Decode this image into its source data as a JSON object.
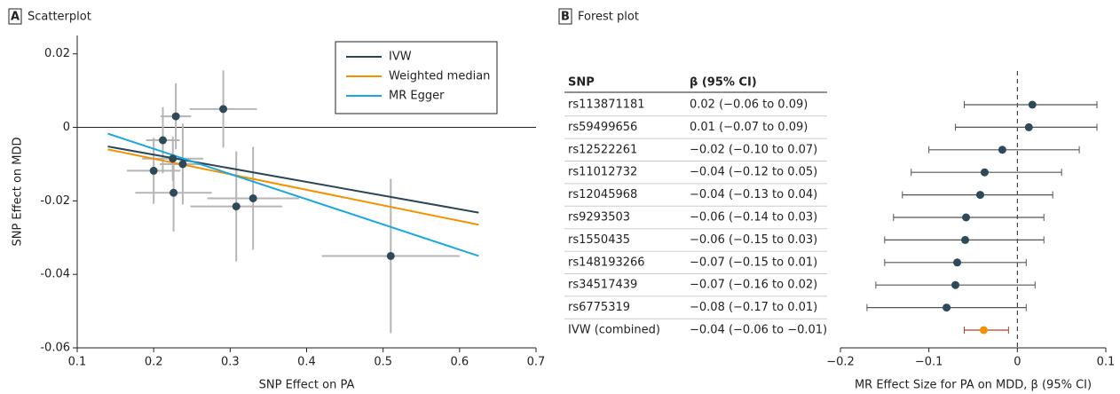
{
  "chart_data": [
    {
      "type": "scatter",
      "panel": "A",
      "title": "Scatterplot",
      "xlabel": "SNP Effect on PA",
      "ylabel": "SNP Effect on MDD",
      "x": [
        0.229,
        0.291,
        0.212,
        0.225,
        0.238,
        0.2,
        0.226,
        0.33,
        0.308,
        0.51
      ],
      "y": [
        0.003,
        0.005,
        -0.0035,
        -0.0085,
        -0.01,
        -0.0118,
        -0.0178,
        -0.0193,
        -0.0215,
        -0.035
      ],
      "xerr": [
        0.02,
        0.044,
        0.022,
        0.04,
        0.03,
        0.035,
        0.05,
        0.06,
        0.06,
        0.09
      ],
      "yerr": [
        0.009,
        0.0105,
        0.009,
        0.006,
        0.011,
        0.009,
        0.0105,
        0.014,
        0.015,
        0.021
      ],
      "color": "#2e4a5a",
      "errorbar_color": "#b5b5b5",
      "series": [
        {
          "name": "IVW",
          "color": "#2b4657",
          "x": [
            0.14,
            0.625
          ],
          "y": [
            -0.0052,
            -0.0232
          ]
        },
        {
          "name": "Weighted median",
          "color": "#f39200",
          "x": [
            0.14,
            0.625
          ],
          "y": [
            -0.006,
            -0.0265
          ]
        },
        {
          "name": "MR Egger",
          "color": "#1aa7e0",
          "x": [
            0.14,
            0.625
          ],
          "y": [
            -0.0017,
            -0.035
          ]
        }
      ],
      "reference_line": 0,
      "legend": "upper right",
      "xlim": [
        0.1,
        0.7
      ],
      "xticks": [
        0.1,
        0.2,
        0.3,
        0.4,
        0.5,
        0.6,
        0.7
      ],
      "ylim": [
        -0.06,
        0.025
      ],
      "yticks": [
        -0.06,
        -0.04,
        -0.02,
        0,
        0.02
      ]
    },
    {
      "type": "forest",
      "panel": "B",
      "title": "Forest plot",
      "column_headers": [
        "SNP",
        "β (95% CI)"
      ],
      "xlabel": "MR Effect Size for PA on MDD, β (95% CI)",
      "categories": [
        "rs113871181",
        "rs59499656",
        "rs12522261",
        "rs11012732",
        "rs12045968",
        "rs9293503",
        "rs1550435",
        "rs148193266",
        "rs34517439",
        "rs6775319",
        "IVW (combined)"
      ],
      "values": [
        0.017,
        0.013,
        -0.017,
        -0.037,
        -0.042,
        -0.058,
        -0.059,
        -0.068,
        -0.07,
        -0.08,
        -0.038
      ],
      "lower": [
        -0.06,
        -0.07,
        -0.1,
        -0.12,
        -0.13,
        -0.14,
        -0.15,
        -0.15,
        -0.16,
        -0.17,
        -0.06
      ],
      "upper": [
        0.09,
        0.09,
        0.07,
        0.05,
        0.04,
        0.03,
        0.03,
        0.01,
        0.02,
        0.01,
        -0.01
      ],
      "value_labels": [
        "0.02 (−0.06 to 0.09)",
        "0.01 (−0.07 to 0.09)",
        "−0.02 (−0.10 to 0.07)",
        "−0.04 (−0.12 to 0.05)",
        "−0.04 (−0.13 to 0.04)",
        "−0.06 (−0.14 to 0.03)",
        "−0.06 (−0.15 to 0.03)",
        "−0.07 (−0.15 to 0.01)",
        "−0.07 (−0.16 to 0.02)",
        "−0.08 (−0.17 to 0.01)",
        "−0.04 (−0.06 to −0.01)"
      ],
      "point_colors": [
        "#2e4a5a",
        "#2e4a5a",
        "#2e4a5a",
        "#2e4a5a",
        "#2e4a5a",
        "#2e4a5a",
        "#2e4a5a",
        "#2e4a5a",
        "#2e4a5a",
        "#2e4a5a",
        "#f39200"
      ],
      "ci_colors": [
        "#555555",
        "#555555",
        "#555555",
        "#555555",
        "#555555",
        "#555555",
        "#555555",
        "#555555",
        "#555555",
        "#555555",
        "#c0392b"
      ],
      "reference_line": 0,
      "xlim": [
        -0.2,
        0.1
      ],
      "xticks": [
        {
          "value": -0.2,
          "label": "−0.2"
        },
        {
          "value": -0.1,
          "label": "−0.1"
        },
        0,
        0.1
      ]
    }
  ]
}
